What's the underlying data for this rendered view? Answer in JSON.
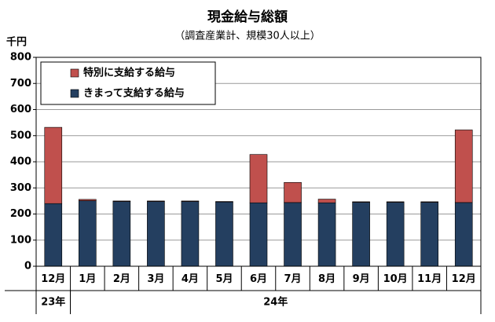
{
  "chart_data": {
    "type": "stacked_bar",
    "title": "現金給与総額",
    "subtitle": "（調査産業計、規模30人以上）",
    "unit_label": "千円",
    "categories": [
      "12月",
      "1月",
      "2月",
      "3月",
      "4月",
      "5月",
      "6月",
      "7月",
      "8月",
      "9月",
      "10月",
      "11月",
      "12月"
    ],
    "group_labels": [
      "23年",
      "24年",
      null,
      null,
      null,
      null,
      null,
      null,
      null,
      null,
      null,
      null,
      null
    ],
    "series": [
      {
        "name": "きまって支給する給与",
        "color": "#243f60",
        "values": [
          240,
          251,
          248,
          248,
          248,
          246,
          243,
          244,
          243,
          245,
          245,
          245,
          244
        ]
      },
      {
        "name": "特別に支給する給与",
        "color": "#c0504d",
        "values": [
          292,
          5,
          2,
          2,
          2,
          2,
          185,
          77,
          14,
          2,
          2,
          2,
          278
        ]
      }
    ],
    "ylim": [
      0,
      800
    ],
    "yticks": [
      0,
      100,
      200,
      300,
      400,
      500,
      600,
      700,
      800
    ],
    "grid": true
  }
}
